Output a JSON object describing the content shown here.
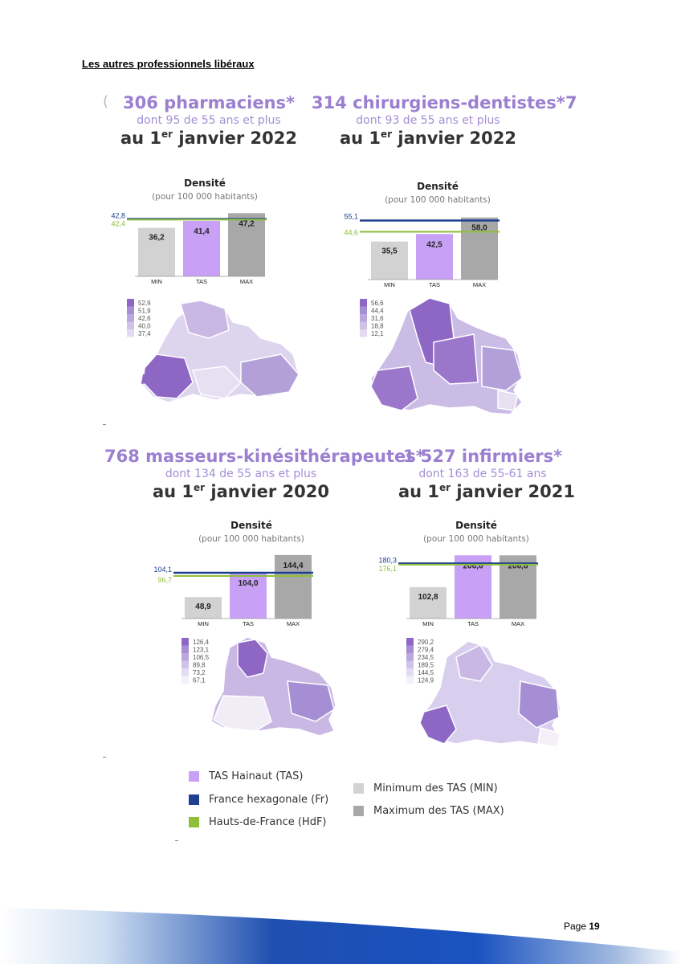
{
  "heading": "Les autres professionnels libéraux",
  "stray_left": "(",
  "stray_right": "7",
  "panels": [
    {
      "title": "306 pharmaciens*",
      "sub": "dont 95 de 55 ans et plus",
      "date_pre": "au 1",
      "date_sup": "er",
      "date_post": " janvier 2022"
    },
    {
      "title": "314 chirurgiens-dentistes*",
      "sub": "dont 93 de 55 ans et plus",
      "date_pre": "au 1",
      "date_sup": "er",
      "date_post": " janvier 2022"
    },
    {
      "title": "768 masseurs-kinésithérapeutes*",
      "sub": "dont 134 de 55 ans et plus",
      "date_pre": "au 1",
      "date_sup": "er",
      "date_post": " janvier 2020"
    },
    {
      "title": "1 527 infirmiers*",
      "sub": "dont 163 de 55-61 ans",
      "date_pre": "au 1",
      "date_sup": "er",
      "date_post": " janvier 2021"
    }
  ],
  "chart_data": [
    {
      "type": "bar",
      "title": "Densité",
      "subtitle": "(pour 100 000 habitants)",
      "categories": [
        "MIN",
        "TAS",
        "MAX"
      ],
      "values": [
        36.2,
        41.4,
        47.2
      ],
      "labels": [
        "36,2",
        "41,4",
        "47,2"
      ],
      "fr": 42.8,
      "fr_label": "42,8",
      "hdf": 42.4,
      "hdf_label": "42,4",
      "ymax": 48
    },
    {
      "type": "bar",
      "title": "Densité",
      "subtitle": "(pour 100 000 habitants)",
      "categories": [
        "MIN",
        "TAS",
        "MAX"
      ],
      "values": [
        35.5,
        42.5,
        58.0
      ],
      "labels": [
        "35,5",
        "42,5",
        "58,0"
      ],
      "fr": 55.1,
      "fr_label": "55,1",
      "hdf": 44.6,
      "hdf_label": "44,6",
      "ymax": 60
    },
    {
      "type": "bar",
      "title": "Densité",
      "subtitle": "(pour 100 000 habitants)",
      "categories": [
        "MIN",
        "TAS",
        "MAX"
      ],
      "values": [
        48.9,
        104.0,
        144.4
      ],
      "labels": [
        "48,9",
        "104,0",
        "144,4"
      ],
      "fr": 104.1,
      "fr_label": "104,1",
      "hdf": 96.7,
      "hdf_label": "96,7",
      "ymax": 146
    },
    {
      "type": "bar",
      "title": "Densité",
      "subtitle": "(pour 100 000 habitants)",
      "categories": [
        "MIN",
        "TAS",
        "MAX"
      ],
      "values": [
        102.8,
        206.6,
        206.6
      ],
      "labels": [
        "102,8",
        "206,6",
        "206,6"
      ],
      "fr": 180.3,
      "fr_label": "180,3",
      "hdf": 176.1,
      "hdf_label": "176,1",
      "ymax": 210
    }
  ],
  "maps": [
    {
      "legend": [
        "52,9",
        "51,9",
        "42,6",
        "40,0",
        "37,4"
      ]
    },
    {
      "legend": [
        "56,6",
        "44,4",
        "31,6",
        "18,8",
        "12,1"
      ]
    },
    {
      "legend": [
        "126,4",
        "123,1",
        "106,5",
        "89,8",
        "73,2",
        "67,1"
      ]
    },
    {
      "legend": [
        "290,2",
        "279,4",
        "234,5",
        "189,5",
        "144,5",
        "124,9"
      ]
    }
  ],
  "legend": {
    "tas": "TAS Hainaut (TAS)",
    "fr": "France hexagonale (Fr)",
    "hdf": "Hauts-de-France (HdF)",
    "min": "Minimum des TAS (MIN)",
    "max": "Maximum des TAS (MAX)"
  },
  "colors": {
    "tas": "#c8a0f5",
    "fr": "#1f3f8f",
    "hdf": "#8fbf3a",
    "min": "#d2d2d2",
    "max": "#a8a8a8"
  },
  "page": {
    "label": "Page",
    "number": "19"
  }
}
